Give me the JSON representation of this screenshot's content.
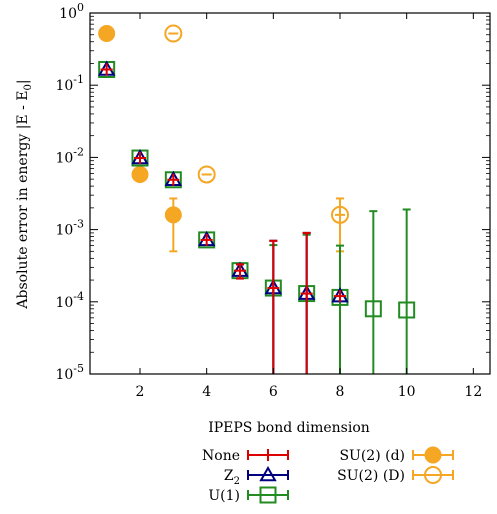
{
  "chart_data": {
    "type": "scatter",
    "xlabel": "IPEPS bond dimension",
    "ylabel": "Absolute error in energy |E - E",
    "ylabel_sub": "0",
    "ylabel_tail": "|",
    "xlim": [
      0.5,
      12.5
    ],
    "ylim_log10": [
      -5,
      0
    ],
    "y_scale": "log",
    "grid": false,
    "legend_position": "bottom",
    "x_ticks": [
      2,
      4,
      6,
      8,
      10,
      12
    ],
    "x_tick_labels": [
      "2",
      "4",
      "6",
      "8",
      "10",
      "12"
    ],
    "y_tick_exponents": [
      0,
      -1,
      -2,
      -3,
      -4,
      -5
    ],
    "y_tick_base": "10",
    "y_tick_exponent_labels": [
      "0",
      "-1",
      "-2",
      "-3",
      "-4",
      "-5"
    ],
    "series": [
      {
        "name": "None",
        "color": "#dd0000",
        "marker": "plus",
        "points": [
          {
            "x": 1,
            "y": 0.165
          },
          {
            "x": 2,
            "y": 0.0098
          },
          {
            "x": 3,
            "y": 0.0049
          },
          {
            "x": 4,
            "y": 0.00072
          },
          {
            "x": 5,
            "y": 0.00027,
            "ylo": 0.00021,
            "yhi": 0.00033
          },
          {
            "x": 6,
            "y": 0.000155,
            "ylo": 1e-06,
            "yhi": 0.0007
          },
          {
            "x": 7,
            "y": 0.00013,
            "ylo": 1e-06,
            "yhi": 0.0009
          },
          {
            "x": 8,
            "y": 0.00012
          }
        ]
      },
      {
        "name": "Z",
        "name_sub": "2",
        "color": "#000080",
        "marker": "triangle",
        "points": [
          {
            "x": 1,
            "y": 0.165
          },
          {
            "x": 2,
            "y": 0.0098
          },
          {
            "x": 3,
            "y": 0.0049
          },
          {
            "x": 4,
            "y": 0.00072
          },
          {
            "x": 5,
            "y": 0.00027,
            "ylo": 0.00021,
            "yhi": 0.00033
          },
          {
            "x": 6,
            "y": 0.000155,
            "ylo": 1e-06,
            "yhi": 0.0007
          },
          {
            "x": 7,
            "y": 0.00013,
            "ylo": 1e-06,
            "yhi": 0.0009
          },
          {
            "x": 8,
            "y": 0.00012
          }
        ]
      },
      {
        "name": "U(1)",
        "color": "#228b22",
        "marker": "square",
        "points": [
          {
            "x": 1,
            "y": 0.165
          },
          {
            "x": 2,
            "y": 0.0098
          },
          {
            "x": 3,
            "y": 0.0049
          },
          {
            "x": 4,
            "y": 0.00072
          },
          {
            "x": 5,
            "y": 0.00027,
            "ylo": 0.00021,
            "yhi": 0.00033
          },
          {
            "x": 6,
            "y": 0.000155,
            "ylo": 1e-06,
            "yhi": 0.00061
          },
          {
            "x": 7,
            "y": 0.00013,
            "ylo": 1e-06,
            "yhi": 0.00085
          },
          {
            "x": 8,
            "y": 0.000115,
            "ylo": 1e-06,
            "yhi": 0.0006
          },
          {
            "x": 9,
            "y": 8e-05,
            "ylo": 1e-06,
            "yhi": 0.0018
          },
          {
            "x": 10,
            "y": 7.7e-05,
            "ylo": 1e-06,
            "yhi": 0.0019
          }
        ]
      },
      {
        "name": "SU(2) (d)",
        "color": "#f5a623",
        "marker": "filled-circle",
        "points": [
          {
            "x": 1,
            "y": 0.52
          },
          {
            "x": 2,
            "y": 0.0058
          },
          {
            "x": 3,
            "y": 0.0016,
            "ylo": 0.0005,
            "yhi": 0.0027
          }
        ]
      },
      {
        "name": "SU(2) (D)",
        "color": "#f5a623",
        "marker": "open-circle",
        "points": [
          {
            "x": 3,
            "y": 0.52
          },
          {
            "x": 4,
            "y": 0.0058
          },
          {
            "x": 8,
            "y": 0.0016,
            "ylo": 0.0005,
            "yhi": 0.0027
          }
        ]
      }
    ]
  }
}
